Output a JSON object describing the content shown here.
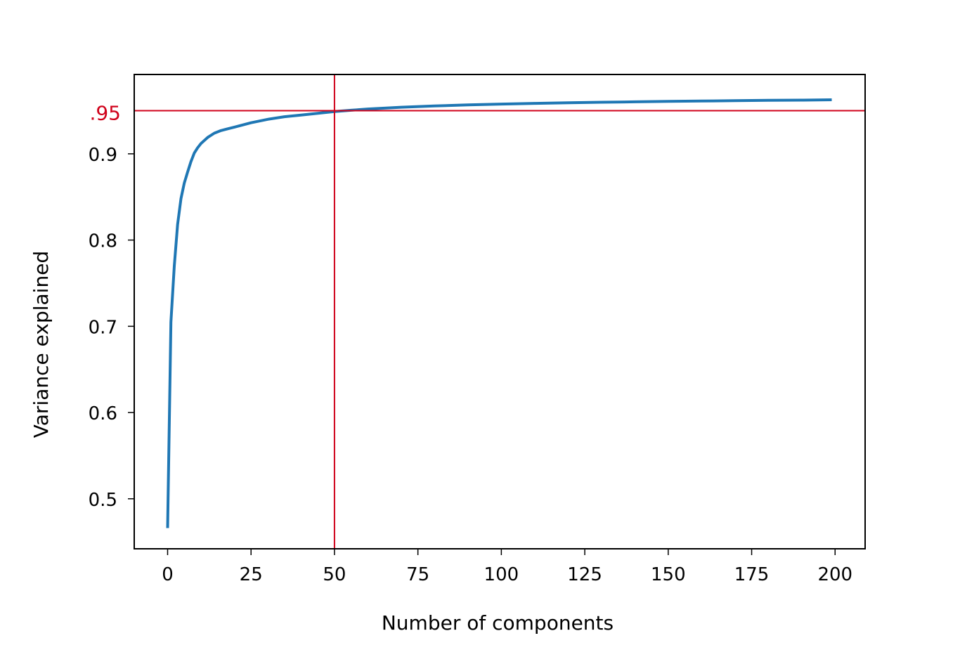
{
  "chart_data": {
    "type": "line",
    "title": "",
    "xlabel": "Number of components",
    "ylabel": "Variance explained",
    "xlim": [
      -10,
      209
    ],
    "ylim": [
      0.442,
      0.992
    ],
    "xticks": [
      0,
      25,
      50,
      75,
      100,
      125,
      150,
      175,
      200
    ],
    "xtick_labels": [
      "0",
      "25",
      "50",
      "75",
      "100",
      "125",
      "150",
      "175",
      "200"
    ],
    "yticks": [
      0.5,
      0.6,
      0.7,
      0.8,
      0.9
    ],
    "ytick_labels": [
      "0.5",
      "0.6",
      "0.7",
      "0.8",
      "0.9"
    ],
    "grid": false,
    "series": [
      {
        "color": "#1f77b4",
        "x": [
          0,
          1,
          2,
          3,
          4,
          5,
          6,
          7,
          8,
          9,
          10,
          12,
          14,
          16,
          18,
          20,
          25,
          30,
          35,
          40,
          45,
          50,
          55,
          60,
          70,
          80,
          90,
          100,
          110,
          120,
          130,
          140,
          150,
          160,
          170,
          180,
          190,
          199
        ],
        "y": [
          0.466,
          0.705,
          0.77,
          0.818,
          0.848,
          0.866,
          0.879,
          0.891,
          0.901,
          0.907,
          0.912,
          0.919,
          0.924,
          0.927,
          0.929,
          0.931,
          0.936,
          0.94,
          0.943,
          0.945,
          0.947,
          0.949,
          0.9505,
          0.952,
          0.954,
          0.9555,
          0.9567,
          0.9577,
          0.9585,
          0.9592,
          0.9598,
          0.9603,
          0.9608,
          0.9612,
          0.9616,
          0.962,
          0.9623,
          0.9627
        ]
      }
    ],
    "reference_lines": {
      "color": "#d0021b",
      "horizontal": {
        "y": 0.95,
        "label": ".95"
      },
      "vertical": {
        "x": 50
      }
    }
  }
}
